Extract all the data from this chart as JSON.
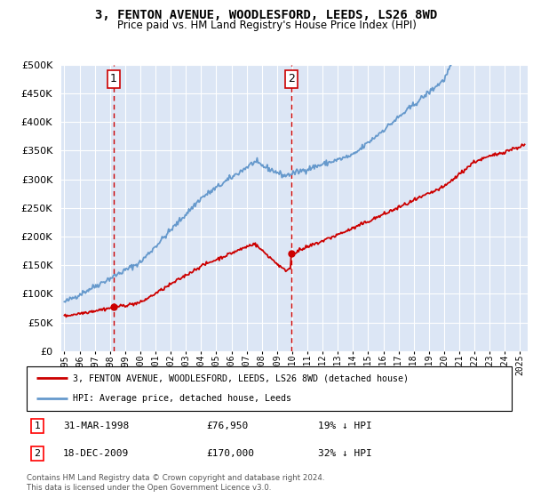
{
  "title": "3, FENTON AVENUE, WOODLESFORD, LEEDS, LS26 8WD",
  "subtitle": "Price paid vs. HM Land Registry's House Price Index (HPI)",
  "legend_line1": "3, FENTON AVENUE, WOODLESFORD, LEEDS, LS26 8WD (detached house)",
  "legend_line2": "HPI: Average price, detached house, Leeds",
  "annotation1_date": "31-MAR-1998",
  "annotation1_price": "£76,950",
  "annotation1_hpi": "19% ↓ HPI",
  "annotation2_date": "18-DEC-2009",
  "annotation2_price": "£170,000",
  "annotation2_hpi": "32% ↓ HPI",
  "footer": "Contains HM Land Registry data © Crown copyright and database right 2024.\nThis data is licensed under the Open Government Licence v3.0.",
  "plot_bg_color": "#dce6f5",
  "grid_color": "#ffffff",
  "red_color": "#cc0000",
  "blue_color": "#6699cc",
  "marker1_x": 1998.25,
  "marker1_y": 76950,
  "marker2_x": 2009.96,
  "marker2_y": 170000,
  "ylim": [
    0,
    500000
  ],
  "xlim": [
    1994.8,
    2025.5
  ]
}
